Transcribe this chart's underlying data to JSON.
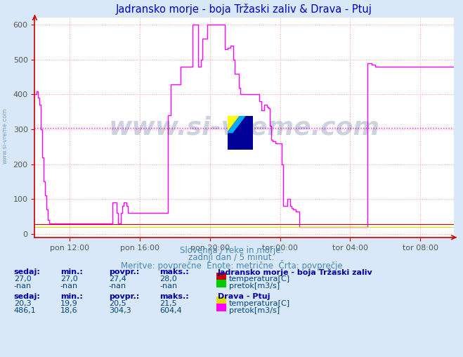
{
  "title": "Jadransko morje - boja Tržaski zaliv & Drava - Ptuj",
  "title_color": "#0000cc",
  "bg_color": "#d8e8f8",
  "plot_bg_color": "#ffffff",
  "grid_color": "#ff9999",
  "grid_style": ":",
  "xlabel_ticks": [
    "pon 12:00",
    "pon 16:00",
    "pon 20:00",
    "tor 00:00",
    "tor 04:00",
    "tor 08:00"
  ],
  "ylim": [
    -10,
    620
  ],
  "yticks": [
    0,
    100,
    200,
    300,
    400,
    500,
    600
  ],
  "tick_color": "#555555",
  "avg_line_value": 304.3,
  "avg_line_color": "#ff00ff",
  "avg_line_style": ":",
  "watermark_text": "www.si-vreme.com",
  "watermark_color": "#1a3a6e",
  "watermark_alpha": 0.22,
  "subtitle1": "Slovenija / reke in morje.",
  "subtitle2": "zadnji dan / 5 minut.",
  "subtitle3": "Meritve: povprečne  Enote: metrične  Črta: povprečje",
  "subtitle_color": "#4488bb",
  "table_header_color": "#0000aa",
  "table_value_color": "#004488",
  "n_points": 288,
  "sea_temp_color": "#cc0000",
  "sea_flow_color": "#00cc00",
  "drava_temp_color": "#dddd00",
  "drava_flow_color": "#ff00ff",
  "axis_color": "#cc0000",
  "side_wm_color": "#4477aa",
  "drava_flow_data": [
    400,
    410,
    390,
    370,
    300,
    220,
    150,
    110,
    70,
    40,
    30,
    30,
    30,
    30,
    30,
    30,
    30,
    30,
    30,
    30,
    30,
    30,
    30,
    30,
    30,
    30,
    30,
    30,
    30,
    30,
    30,
    30,
    30,
    30,
    30,
    30,
    30,
    30,
    30,
    30,
    30,
    30,
    30,
    30,
    30,
    30,
    30,
    30,
    30,
    30,
    30,
    30,
    30,
    90,
    90,
    90,
    60,
    30,
    30,
    60,
    80,
    90,
    90,
    80,
    60,
    60,
    60,
    60,
    60,
    60,
    60,
    60,
    60,
    60,
    60,
    60,
    60,
    60,
    60,
    60,
    60,
    60,
    60,
    60,
    60,
    60,
    60,
    60,
    60,
    60,
    60,
    340,
    340,
    430,
    430,
    430,
    430,
    430,
    430,
    430,
    480,
    480,
    480,
    480,
    480,
    480,
    480,
    480,
    600,
    600,
    600,
    600,
    480,
    480,
    500,
    560,
    560,
    560,
    600,
    600,
    600,
    600,
    600,
    600,
    600,
    600,
    600,
    600,
    600,
    600,
    530,
    530,
    535,
    535,
    540,
    540,
    500,
    460,
    460,
    460,
    420,
    400,
    400,
    400,
    400,
    400,
    400,
    400,
    400,
    400,
    400,
    400,
    400,
    400,
    380,
    355,
    355,
    370,
    370,
    365,
    360,
    310,
    270,
    265,
    265,
    260,
    260,
    260,
    260,
    200,
    80,
    80,
    80,
    100,
    100,
    80,
    75,
    70,
    70,
    65,
    65,
    20,
    20,
    20,
    20,
    20,
    20,
    20,
    20,
    20,
    20,
    20,
    20,
    20,
    20,
    20,
    20,
    20,
    20,
    20,
    20,
    20,
    20,
    20,
    20,
    20,
    20,
    20,
    20,
    20,
    20,
    20,
    20,
    20,
    20,
    20,
    20,
    20,
    20,
    20,
    20,
    20,
    20,
    20,
    20,
    20,
    20,
    20,
    490,
    490,
    490,
    485,
    485,
    480,
    480,
    480,
    480,
    480,
    480,
    480,
    480,
    480,
    480,
    480,
    480,
    480,
    480,
    480,
    480,
    480,
    480,
    480,
    480,
    480,
    480,
    480,
    480,
    480,
    480,
    480,
    480,
    480,
    480,
    480,
    480,
    480,
    480,
    480,
    480,
    480,
    480,
    480,
    480,
    480,
    480,
    480,
    480,
    480,
    480,
    480,
    480,
    480,
    480,
    480,
    480,
    480,
    480,
    480
  ]
}
